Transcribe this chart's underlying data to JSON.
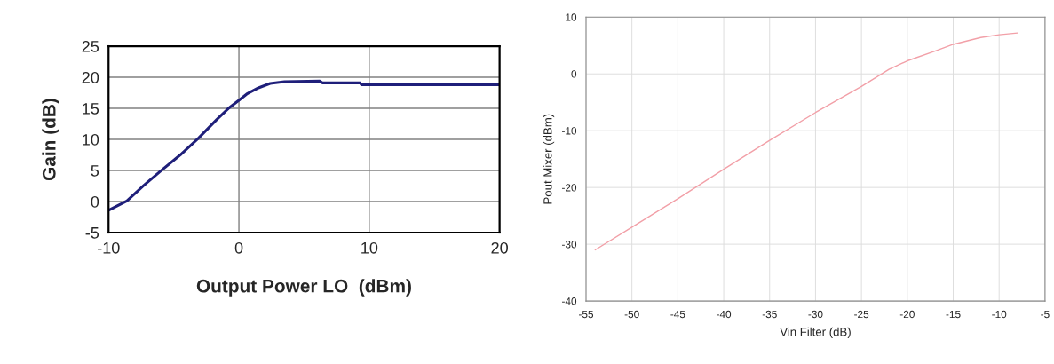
{
  "chart_data": [
    {
      "type": "line",
      "xlabel": "Output Power LO  (dBm)",
      "ylabel": "Gain (dB)",
      "xlim": [
        -10,
        20
      ],
      "xticks": [
        -10,
        0,
        10,
        20
      ],
      "ylim": [
        -5,
        25
      ],
      "yticks": [
        -5,
        0,
        5,
        10,
        15,
        20,
        25
      ],
      "grid": true,
      "series": [
        {
          "color": "#1f1f7a",
          "x": [
            -10,
            -8.6,
            -7.3,
            -5.9,
            -4.5,
            -3.1,
            -1.7,
            -0.8,
            0,
            0.6,
            1.5,
            2.4,
            3.5,
            6.2,
            6.4,
            9.3,
            9.4,
            20
          ],
          "values": [
            -1.4,
            0.1,
            2.6,
            5.1,
            7.5,
            10.2,
            13.2,
            15,
            16.3,
            17.3,
            18.3,
            19,
            19.3,
            19.4,
            19.1,
            19.1,
            18.8,
            18.8
          ]
        }
      ]
    },
    {
      "type": "line",
      "xlabel": "Vin Filter (dB)",
      "ylabel": "Pout Mixer (dBm)",
      "xlim": [
        -55,
        -5
      ],
      "xticks": [
        -55,
        -50,
        -45,
        -40,
        -35,
        -30,
        -25,
        -20,
        -15,
        -10,
        -5
      ],
      "ylim": [
        -40,
        10
      ],
      "yticks": [
        -40,
        -30,
        -20,
        -10,
        0,
        10
      ],
      "grid": true,
      "series": [
        {
          "color": "#f2a0a8",
          "x": [
            -54,
            -50,
            -45,
            -40,
            -35,
            -30,
            -25,
            -22,
            -20,
            -17,
            -15,
            -12,
            -10,
            -8
          ],
          "values": [
            -31,
            -27,
            -22,
            -16.8,
            -11.7,
            -6.8,
            -2.2,
            0.8,
            2.3,
            4,
            5.2,
            6.4,
            6.9,
            7.2
          ]
        }
      ]
    }
  ]
}
